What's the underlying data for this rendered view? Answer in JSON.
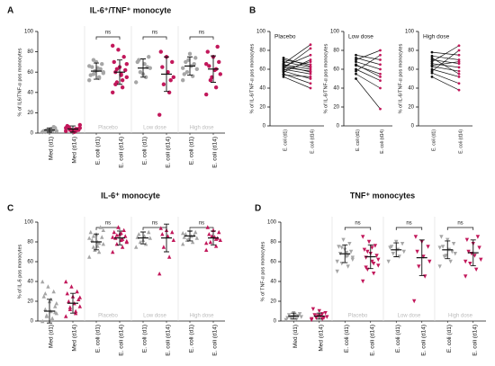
{
  "chart_data": [
    {
      "type": "dot",
      "panel": "A",
      "title": "IL-6⁺/TNF⁺ monocyte",
      "ylabel": "% of IL6/TNF-α pos monocytes",
      "ylim": [
        0,
        100
      ],
      "yticks": [
        0,
        20,
        40,
        60,
        80,
        100
      ],
      "marker": "circle",
      "categories": [
        "Med (d1)",
        "Med (d14)",
        "E. coli (d1)",
        "E. coli (d14)",
        "E. coli (d1)",
        "E. coli (d14)",
        "E. coli (d1)",
        "E. coli (d14)"
      ],
      "colors": [
        "#a6a6a6",
        "#c2185b",
        "#a6a6a6",
        "#c2185b",
        "#a6a6a6",
        "#c2185b",
        "#a6a6a6",
        "#c2185b"
      ],
      "groups": [
        "Placebo",
        "Low dose",
        "High dose"
      ],
      "annotations": [
        "ns",
        "ns",
        "ns"
      ],
      "points": [
        [
          1,
          2,
          3,
          2,
          4,
          1,
          5,
          3,
          2,
          6,
          2,
          1,
          3
        ],
        [
          2,
          4,
          3,
          5,
          1,
          6,
          3,
          2,
          7,
          4,
          3,
          5,
          2,
          4,
          8
        ],
        [
          52,
          55,
          58,
          60,
          62,
          65,
          68,
          70,
          57,
          63,
          61,
          66,
          54,
          72,
          59,
          64
        ],
        [
          40,
          45,
          50,
          55,
          58,
          60,
          62,
          65,
          70,
          75,
          82,
          86,
          52,
          63,
          68,
          57,
          48
        ],
        [
          50,
          55,
          60,
          64,
          68,
          72,
          75,
          58,
          70,
          65
        ],
        [
          18,
          40,
          48,
          55,
          60,
          65,
          70,
          75,
          80,
          52
        ],
        [
          52,
          56,
          60,
          63,
          66,
          70,
          74,
          78,
          58,
          68,
          72,
          64
        ],
        [
          38,
          45,
          52,
          58,
          62,
          66,
          70,
          75,
          80,
          85,
          55,
          68,
          63
        ]
      ],
      "means": [
        3,
        4,
        61,
        60,
        64,
        58,
        66,
        63
      ],
      "sd": [
        2,
        3,
        8,
        12,
        9,
        17,
        9,
        13
      ]
    },
    {
      "type": "paired",
      "panel": "B",
      "title": "Placebo",
      "ylabel": "% of IL-6/TNF-α pos monocytes",
      "ylim": [
        0,
        100
      ],
      "yticks": [
        0,
        20,
        40,
        60,
        80,
        100
      ],
      "categories": [
        "E. coli (d1)",
        "E. coli (d14)"
      ],
      "colors": [
        "#111111",
        "#c2185b"
      ],
      "pairs": [
        [
          52,
          40
        ],
        [
          55,
          45
        ],
        [
          58,
          50
        ],
        [
          60,
          55
        ],
        [
          62,
          58
        ],
        [
          65,
          60
        ],
        [
          68,
          62
        ],
        [
          70,
          65
        ],
        [
          57,
          70
        ],
        [
          63,
          75
        ],
        [
          61,
          82
        ],
        [
          66,
          86
        ],
        [
          54,
          52
        ],
        [
          72,
          63
        ],
        [
          59,
          68
        ],
        [
          64,
          57
        ]
      ]
    },
    {
      "type": "paired",
      "title": "Low dose",
      "ylabel": "% of IL-6/TNF-α pos monocytes",
      "ylim": [
        0,
        100
      ],
      "yticks": [
        0,
        20,
        40,
        60,
        80,
        100
      ],
      "categories": [
        "E. coli (d1)",
        "E. coli (d14)"
      ],
      "colors": [
        "#111111",
        "#c2185b"
      ],
      "pairs": [
        [
          50,
          18
        ],
        [
          55,
          40
        ],
        [
          60,
          48
        ],
        [
          64,
          55
        ],
        [
          68,
          60
        ],
        [
          72,
          65
        ],
        [
          75,
          70
        ],
        [
          58,
          75
        ],
        [
          70,
          80
        ],
        [
          65,
          52
        ]
      ]
    },
    {
      "type": "paired",
      "title": "High dose",
      "ylabel": "% of IL-6/TNF-α pos monocytes",
      "ylim": [
        0,
        100
      ],
      "yticks": [
        0,
        20,
        40,
        60,
        80,
        100
      ],
      "categories": [
        "E. coli (d1)",
        "E. coli (d14)"
      ],
      "colors": [
        "#111111",
        "#c2185b"
      ],
      "pairs": [
        [
          52,
          38
        ],
        [
          56,
          45
        ],
        [
          60,
          52
        ],
        [
          63,
          58
        ],
        [
          66,
          62
        ],
        [
          70,
          66
        ],
        [
          74,
          70
        ],
        [
          78,
          75
        ],
        [
          58,
          80
        ],
        [
          68,
          85
        ],
        [
          72,
          55
        ],
        [
          64,
          68
        ]
      ]
    },
    {
      "type": "dot",
      "panel": "C",
      "title": "IL-6⁺ monocyte",
      "ylabel": "% of IL-6 pos monocytes",
      "ylim": [
        0,
        100
      ],
      "yticks": [
        0,
        20,
        40,
        60,
        80,
        100
      ],
      "marker": "triangle",
      "categories": [
        "Med (d1)",
        "Med (d14)",
        "E. coli (d1)",
        "E. coli (d14)",
        "E. coli (d1)",
        "E. coli (d14)",
        "E. coli (d1)",
        "E. coli (d14)"
      ],
      "colors": [
        "#a6a6a6",
        "#c2185b",
        "#a6a6a6",
        "#c2185b",
        "#a6a6a6",
        "#c2185b",
        "#a6a6a6",
        "#c2185b"
      ],
      "groups": [
        "Placebo",
        "Low dose",
        "High dose"
      ],
      "annotations": [
        "ns",
        "ns",
        "ns"
      ],
      "points": [
        [
          0,
          2,
          5,
          8,
          10,
          12,
          15,
          20,
          25,
          30,
          35,
          40,
          3,
          6,
          18,
          22,
          28,
          9
        ],
        [
          5,
          10,
          12,
          15,
          18,
          20,
          22,
          25,
          28,
          30,
          35,
          40,
          8,
          14,
          24
        ],
        [
          65,
          70,
          75,
          78,
          80,
          82,
          85,
          88,
          90,
          95,
          72,
          84,
          79,
          86,
          92,
          76
        ],
        [
          70,
          75,
          78,
          80,
          82,
          84,
          86,
          88,
          90,
          92,
          95,
          85,
          83,
          87,
          81,
          89
        ],
        [
          75,
          78,
          80,
          84,
          86,
          88,
          90,
          82,
          85
        ],
        [
          48,
          65,
          75,
          82,
          86,
          88,
          90,
          92,
          94
        ],
        [
          78,
          80,
          82,
          84,
          86,
          88,
          90,
          92,
          85,
          87,
          83,
          89
        ],
        [
          72,
          76,
          80,
          82,
          85,
          88,
          90,
          92,
          95,
          84,
          86,
          79,
          83
        ]
      ],
      "means": [
        10,
        18,
        80,
        84,
        84,
        84,
        86,
        84
      ],
      "sd": [
        12,
        10,
        8,
        7,
        6,
        14,
        5,
        7
      ]
    },
    {
      "type": "dot",
      "panel": "D",
      "title": "TNF⁺ monocytes",
      "ylabel": "% of TNF-α pos monocytes",
      "ylim": [
        0,
        100
      ],
      "yticks": [
        0,
        20,
        40,
        60,
        80,
        100
      ],
      "marker": "triangle-down",
      "categories": [
        "Med (d1)",
        "Med (d14)",
        "E. coli (d1)",
        "E. coli (d14)",
        "E. coli (d1)",
        "E. coli (d14)",
        "E. coli (d1)",
        "E. coli (d14)"
      ],
      "colors": [
        "#a6a6a6",
        "#c2185b",
        "#a6a6a6",
        "#c2185b",
        "#a6a6a6",
        "#c2185b",
        "#a6a6a6",
        "#c2185b"
      ],
      "groups": [
        "Placebo",
        "Low dose",
        "High dose"
      ],
      "annotations": [
        "ns",
        "ns",
        "ns"
      ],
      "points": [
        [
          1,
          2,
          3,
          4,
          5,
          6,
          7,
          8,
          3,
          5,
          4
        ],
        [
          1,
          2,
          3,
          4,
          5,
          6,
          8,
          10,
          12,
          3,
          5,
          2,
          7
        ],
        [
          50,
          55,
          58,
          62,
          65,
          68,
          70,
          72,
          75,
          78,
          82,
          60,
          66,
          74,
          64,
          69
        ],
        [
          40,
          48,
          52,
          56,
          60,
          64,
          66,
          68,
          72,
          76,
          80,
          85,
          58,
          70,
          62,
          74,
          54
        ],
        [
          60,
          65,
          68,
          70,
          72,
          75,
          78,
          80,
          74
        ],
        [
          20,
          45,
          55,
          60,
          65,
          70,
          75,
          80,
          85
        ],
        [
          55,
          60,
          65,
          68,
          72,
          75,
          78,
          82,
          85,
          70,
          66,
          74
        ],
        [
          45,
          52,
          58,
          62,
          66,
          70,
          74,
          78,
          82,
          85,
          68,
          60
        ]
      ],
      "means": [
        5,
        5,
        68,
        65,
        72,
        64,
        72,
        69
      ],
      "sd": [
        3,
        3,
        9,
        12,
        7,
        18,
        9,
        13
      ]
    }
  ]
}
